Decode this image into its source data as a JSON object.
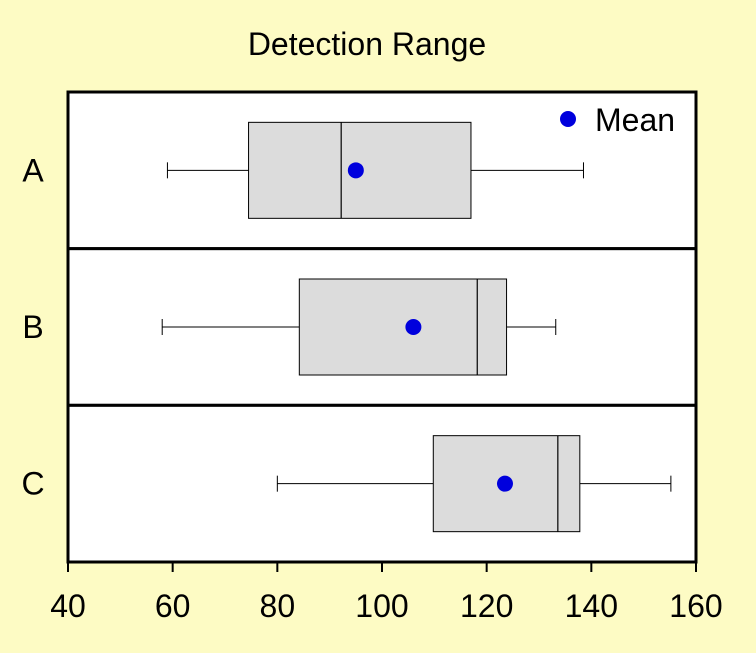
{
  "chart_data": {
    "type": "boxplot",
    "title": "Detection Range",
    "xlabel": "",
    "ylabel": "",
    "xlim": [
      40,
      160
    ],
    "x_ticks": [
      40,
      60,
      80,
      100,
      120,
      140,
      160
    ],
    "grid": false,
    "legend": {
      "position": "top-right",
      "entries": [
        {
          "label": "Mean",
          "marker": "circle",
          "color": "#0000dd"
        }
      ]
    },
    "box_color": "#dcdcdc",
    "mean_color": "#0000dd",
    "categories": [
      "A",
      "B",
      "C"
    ],
    "boxes": [
      {
        "label": "A",
        "whisker_low": 59,
        "q1": 74.5,
        "median": 92.2,
        "q3": 117,
        "whisker_high": 138.5,
        "mean": 95
      },
      {
        "label": "B",
        "whisker_low": 58,
        "q1": 84.2,
        "median": 118.2,
        "q3": 123.8,
        "whisker_high": 133.2,
        "mean": 106
      },
      {
        "label": "C",
        "whisker_low": 80,
        "q1": 109.8,
        "median": 133.6,
        "q3": 137.8,
        "whisker_high": 155.2,
        "mean": 123.5
      }
    ]
  }
}
